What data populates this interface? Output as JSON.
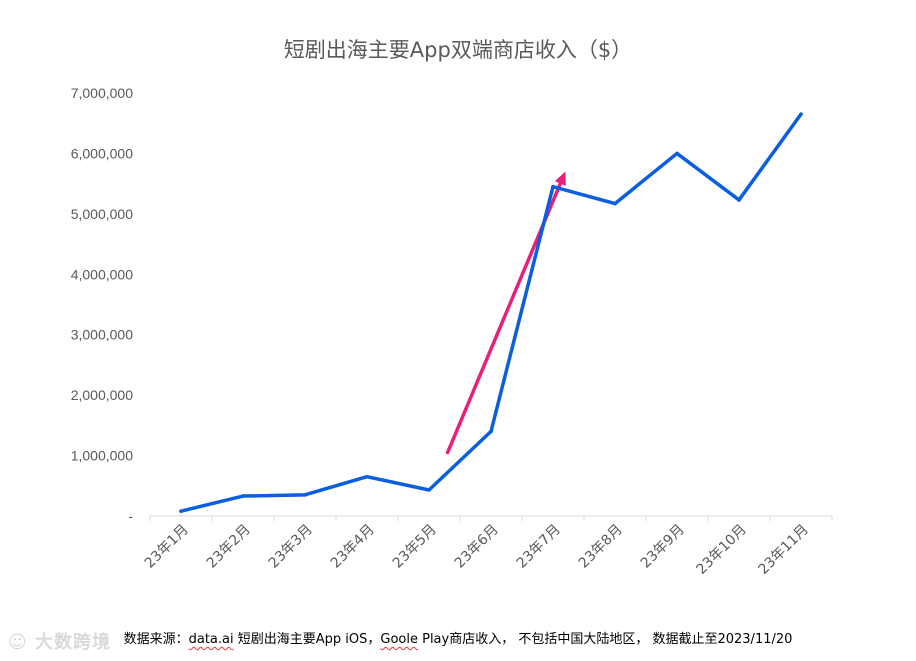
{
  "chart_data": {
    "type": "line",
    "title": "短剧出海主要App双端商店收入（$）",
    "categories": [
      "23年1月",
      "23年2月",
      "23年3月",
      "23年4月",
      "23年5月",
      "23年6月",
      "23年7月",
      "23年8月",
      "23年9月",
      "23年10月",
      "23年11月"
    ],
    "series": [
      {
        "values": [
          80000,
          330000,
          350000,
          650000,
          430000,
          1400000,
          5450000,
          5170000,
          6000000,
          5230000,
          6650000
        ],
        "color": "#0a5fe0"
      }
    ],
    "y_ticks": [
      "-",
      "1,000,000",
      "2,000,000",
      "3,000,000",
      "4,000,000",
      "5,000,000",
      "6,000,000",
      "7,000,000"
    ],
    "ylim": [
      0,
      7000000
    ],
    "grid": false,
    "annotation": {
      "type": "arrow",
      "color": "#e8207a",
      "from": {
        "x_index": 4.3,
        "y": 1050000
      },
      "to": {
        "x_index": 6.2,
        "y": 5700000
      }
    }
  },
  "footnote": {
    "prefix": "数据来源：",
    "source": "data.ai",
    "middle": " 短剧出海主要App iOS，",
    "store": "Goole",
    "suffix": " Play商店收入， 不包括中国大陆地区， 数据截止至2023/11/20"
  },
  "watermark": "大数跨境"
}
